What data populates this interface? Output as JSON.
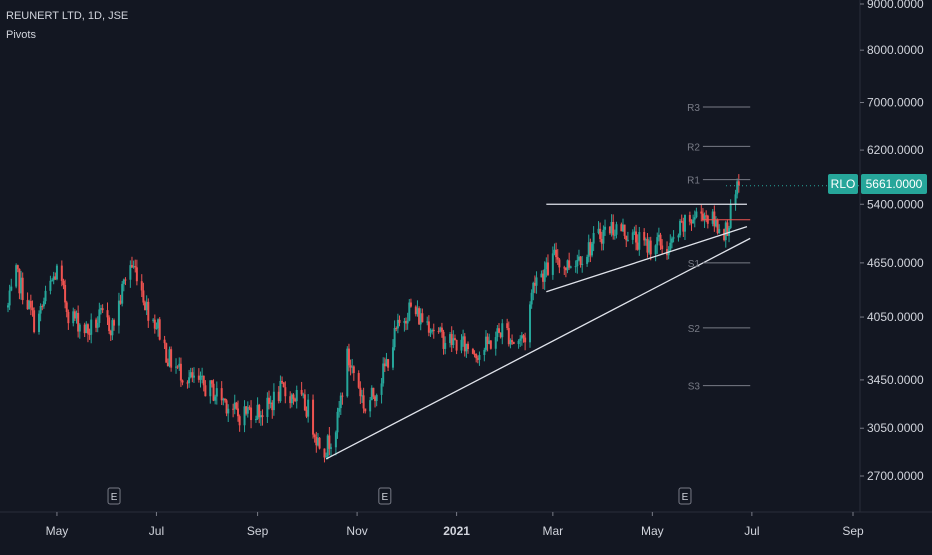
{
  "header": {
    "symbol_title": "REUNERT LTD, 1D, JSE",
    "indicator_label": "Pivots"
  },
  "price_badge": {
    "symbol": "RLO",
    "price": "5661.0000",
    "color": "#26a69a"
  },
  "colors": {
    "background": "#131722",
    "up": "#26a69a",
    "down": "#ef5350",
    "trendline": "#e0e3eb",
    "pivot": "#787b86",
    "axis_text": "#d1d4dc",
    "grid": "#1e222d"
  },
  "events": [
    {
      "label": "E",
      "date": "2020-06-05"
    },
    {
      "label": "E",
      "date": "2020-11-18"
    },
    {
      "label": "E",
      "date": "2021-05-21"
    }
  ],
  "chart_data": {
    "type": "candlestick",
    "title": "REUNERT LTD, 1D, JSE",
    "x_range": [
      "2020-04-01",
      "2021-09-01"
    ],
    "y_scale": "log",
    "y_range": [
      2400,
      9100
    ],
    "y_ticks": [
      "9000.0000",
      "8000.0000",
      "7000.0000",
      "6200.0000",
      "5400.0000",
      "4650.0000",
      "4050.0000",
      "3450.0000",
      "3050.0000",
      "2700.0000"
    ],
    "y_tick_values": [
      9000,
      8000,
      7000,
      6200,
      5400,
      4650,
      4050,
      3450,
      3050,
      2700
    ],
    "x_ticks": [
      {
        "label": "May",
        "date": "2020-05-01"
      },
      {
        "label": "Jul",
        "date": "2020-07-01"
      },
      {
        "label": "Sep",
        "date": "2020-09-01"
      },
      {
        "label": "Nov",
        "date": "2020-11-01"
      },
      {
        "label": "2021",
        "date": "2021-01-01",
        "bold": true
      },
      {
        "label": "Mar",
        "date": "2021-03-01"
      },
      {
        "label": "May",
        "date": "2021-05-01"
      },
      {
        "label": "Jul",
        "date": "2021-07-01"
      },
      {
        "label": "Sep",
        "date": "2021-09-01"
      }
    ],
    "price_path": [
      [
        "2020-04-01",
        4150
      ],
      [
        "2020-04-06",
        4500
      ],
      [
        "2020-04-12",
        4250
      ],
      [
        "2020-04-18",
        3950
      ],
      [
        "2020-04-26",
        4350
      ],
      [
        "2020-05-01",
        4550
      ],
      [
        "2020-05-08",
        4100
      ],
      [
        "2020-05-14",
        4000
      ],
      [
        "2020-05-20",
        3900
      ],
      [
        "2020-05-28",
        4050
      ],
      [
        "2020-06-04",
        3950
      ],
      [
        "2020-06-09",
        4250
      ],
      [
        "2020-06-14",
        4650
      ],
      [
        "2020-06-19",
        4550
      ],
      [
        "2020-06-25",
        4150
      ],
      [
        "2020-07-02",
        3950
      ],
      [
        "2020-07-08",
        3650
      ],
      [
        "2020-07-14",
        3550
      ],
      [
        "2020-07-22",
        3450
      ],
      [
        "2020-08-01",
        3380
      ],
      [
        "2020-08-10",
        3300
      ],
      [
        "2020-08-20",
        3150
      ],
      [
        "2020-08-28",
        3200
      ],
      [
        "2020-09-05",
        3180
      ],
      [
        "2020-09-15",
        3350
      ],
      [
        "2020-09-25",
        3300
      ],
      [
        "2020-10-02",
        3200
      ],
      [
        "2020-10-08",
        2950
      ],
      [
        "2020-10-13",
        2900
      ],
      [
        "2020-10-20",
        3100
      ],
      [
        "2020-10-26",
        3650
      ],
      [
        "2020-11-01",
        3450
      ],
      [
        "2020-11-06",
        3200
      ],
      [
        "2020-11-12",
        3350
      ],
      [
        "2020-11-18",
        3550
      ],
      [
        "2020-11-25",
        3900
      ],
      [
        "2020-12-03",
        4150
      ],
      [
        "2020-12-09",
        4050
      ],
      [
        "2020-12-15",
        4000
      ],
      [
        "2020-12-22",
        3850
      ],
      [
        "2020-12-30",
        3800
      ],
      [
        "2021-01-08",
        3750
      ],
      [
        "2021-01-15",
        3700
      ],
      [
        "2021-01-22",
        3800
      ],
      [
        "2021-01-30",
        3950
      ],
      [
        "2021-02-05",
        3800
      ],
      [
        "2021-02-12",
        3850
      ],
      [
        "2021-02-18",
        4500
      ],
      [
        "2021-02-25",
        4550
      ],
      [
        "2021-03-03",
        4750
      ],
      [
        "2021-03-08",
        4600
      ],
      [
        "2021-03-15",
        4700
      ],
      [
        "2021-03-22",
        4800
      ],
      [
        "2021-03-30",
        5000
      ],
      [
        "2021-04-06",
        5100
      ],
      [
        "2021-04-13",
        5050
      ],
      [
        "2021-04-20",
        4950
      ],
      [
        "2021-04-27",
        4850
      ],
      [
        "2021-05-04",
        4900
      ],
      [
        "2021-05-11",
        4800
      ],
      [
        "2021-05-18",
        5050
      ],
      [
        "2021-05-25",
        5200
      ],
      [
        "2021-06-01",
        5300
      ],
      [
        "2021-06-08",
        5150
      ],
      [
        "2021-06-15",
        5050
      ],
      [
        "2021-06-20",
        5400
      ],
      [
        "2021-06-23",
        5661
      ]
    ],
    "trendlines": [
      {
        "name": "",
        "from": [
          "2020-10-13",
          2820
        ],
        "to": [
          "2021-06-30",
          4950
        ]
      },
      {
        "name": "",
        "from": [
          "2021-02-25",
          4320
        ],
        "to": [
          "2021-06-28",
          5100
        ]
      },
      {
        "name": "",
        "from": [
          "2021-02-25",
          5400
        ],
        "to": [
          "2021-06-28",
          5400
        ]
      }
    ],
    "pivots": {
      "from": "2021-06-01",
      "to": "2021-06-30",
      "levels": [
        {
          "label": "R3",
          "value": 6920
        },
        {
          "label": "R2",
          "value": 6260
        },
        {
          "label": "R1",
          "value": 5750
        },
        {
          "label": "P",
          "value": 5190
        },
        {
          "label": "S1",
          "value": 4650
        },
        {
          "label": "S2",
          "value": 3940
        },
        {
          "label": "S3",
          "value": 3400
        }
      ]
    }
  }
}
